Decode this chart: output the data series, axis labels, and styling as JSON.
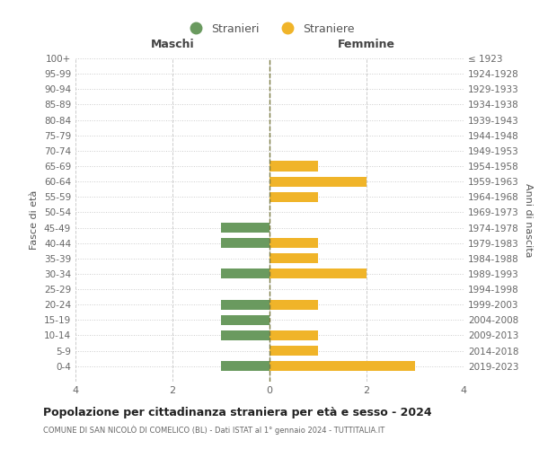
{
  "age_groups": [
    "100+",
    "95-99",
    "90-94",
    "85-89",
    "80-84",
    "75-79",
    "70-74",
    "65-69",
    "60-64",
    "55-59",
    "50-54",
    "45-49",
    "40-44",
    "35-39",
    "30-34",
    "25-29",
    "20-24",
    "15-19",
    "10-14",
    "5-9",
    "0-4"
  ],
  "birth_years": [
    "≤ 1923",
    "1924-1928",
    "1929-1933",
    "1934-1938",
    "1939-1943",
    "1944-1948",
    "1949-1953",
    "1954-1958",
    "1959-1963",
    "1964-1968",
    "1969-1973",
    "1974-1978",
    "1979-1983",
    "1984-1988",
    "1989-1993",
    "1994-1998",
    "1999-2003",
    "2004-2008",
    "2009-2013",
    "2014-2018",
    "2019-2023"
  ],
  "males": [
    0,
    0,
    0,
    0,
    0,
    0,
    0,
    0,
    0,
    0,
    0,
    -1,
    -1,
    0,
    -1,
    0,
    -1,
    -1,
    -1,
    0,
    -1
  ],
  "females": [
    0,
    0,
    0,
    0,
    0,
    0,
    0,
    1,
    2,
    1,
    0,
    0,
    1,
    1,
    2,
    0,
    1,
    0,
    1,
    1,
    3
  ],
  "male_color": "#6a9a5f",
  "female_color": "#f0b429",
  "center_line_color": "#7a7a40",
  "grid_color": "#cccccc",
  "background_color": "#ffffff",
  "title": "Popolazione per cittadinanza straniera per età e sesso - 2024",
  "subtitle": "COMUNE DI SAN NICOLÒ DI COMELICO (BL) - Dati ISTAT al 1° gennaio 2024 - TUTTITALIA.IT",
  "xlabel_left": "Maschi",
  "xlabel_right": "Femmine",
  "ylabel_left": "Fasce di età",
  "ylabel_right": "Anni di nascita",
  "legend_male": "Stranieri",
  "legend_female": "Straniere",
  "xlim": [
    -4,
    4
  ],
  "xticks": [
    -4,
    -2,
    0,
    2,
    4
  ],
  "xticklabels": [
    "4",
    "2",
    "0",
    "2",
    "4"
  ]
}
